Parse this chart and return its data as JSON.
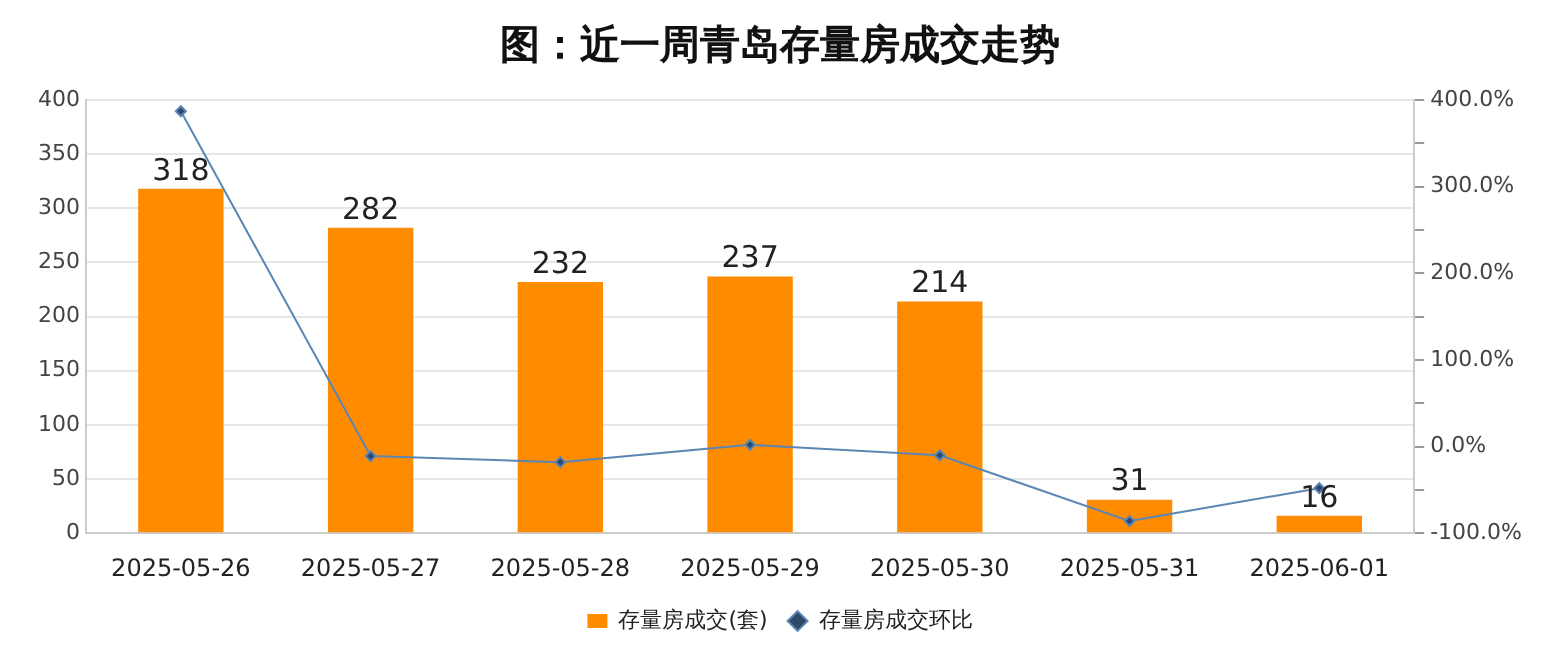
{
  "chart_data": {
    "type": "bar",
    "title": "图：近一周青岛存量房成交走势",
    "categories": [
      "2025-05-26",
      "2025-05-27",
      "2025-05-28",
      "2025-05-29",
      "2025-05-30",
      "2025-05-31",
      "2025-06-01"
    ],
    "series": [
      {
        "name": "存量房成交(套)",
        "color": "#ff8c00",
        "values": [
          318,
          282,
          232,
          237,
          214,
          31,
          16
        ],
        "value_labels": [
          "318",
          "282",
          "232",
          "237",
          "214",
          "31",
          "16"
        ]
      },
      {
        "name": "存量房成交环比",
        "type": "line",
        "axis": "y2",
        "color": "#5b86b3",
        "marker": "diamond",
        "values": [
          387,
          -11,
          -18,
          2,
          -10,
          -86,
          -48
        ]
      }
    ],
    "ylim": [
      0,
      400
    ],
    "yticks": [
      0,
      50,
      100,
      150,
      200,
      250,
      300,
      350,
      400
    ],
    "y2lim": [
      -100,
      400
    ],
    "y2ticks": [
      {
        "value": -100,
        "label": "-100.0%"
      },
      {
        "value": -50,
        "label": null
      },
      {
        "value": 0,
        "label": "0.0%"
      },
      {
        "value": 50,
        "label": null
      },
      {
        "value": 100,
        "label": "100.0%"
      },
      {
        "value": 150,
        "label": null
      },
      {
        "value": 200,
        "label": "200.0%"
      },
      {
        "value": 250,
        "label": null
      },
      {
        "value": 300,
        "label": "300.0%"
      },
      {
        "value": 350,
        "label": null
      },
      {
        "value": 400,
        "label": "400.0%"
      }
    ],
    "grid": "y",
    "legend": "bottom"
  }
}
